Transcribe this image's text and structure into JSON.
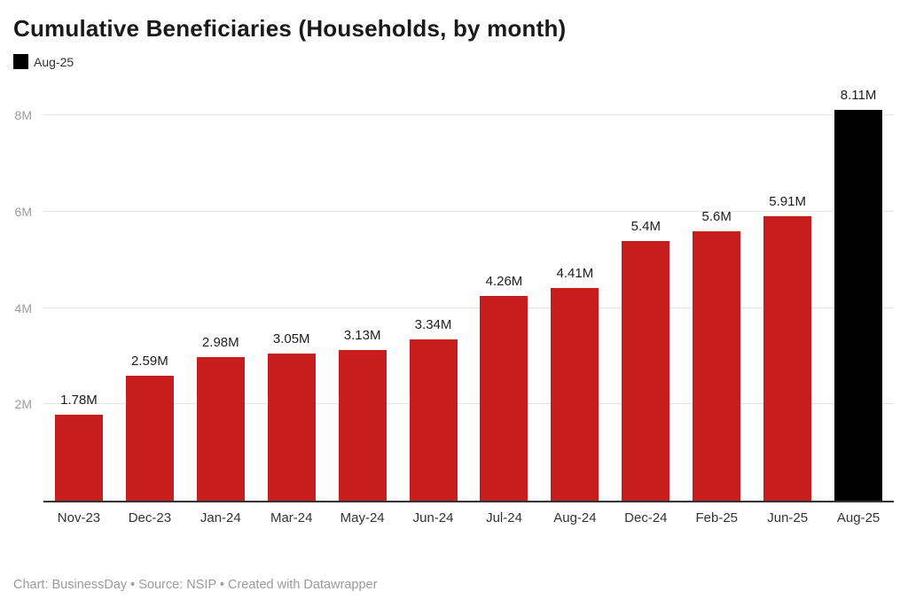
{
  "header": {
    "title": "Cumulative Beneficiaries (Households, by month)",
    "legend_label": "Aug-25"
  },
  "footer": {
    "text": "Chart: BusinessDay • Source: NSIP • Created with Datawrapper"
  },
  "chart_data": {
    "type": "bar",
    "title": "Cumulative Beneficiaries (Households, by month)",
    "categories": [
      "Nov-23",
      "Dec-23",
      "Jan-24",
      "Mar-24",
      "May-24",
      "Jun-24",
      "Jul-24",
      "Aug-24",
      "Dec-24",
      "Feb-25",
      "Jun-25",
      "Aug-25"
    ],
    "values": [
      1.78,
      2.59,
      2.98,
      3.05,
      3.13,
      3.34,
      4.26,
      4.41,
      5.4,
      5.6,
      5.91,
      8.11
    ],
    "value_labels": [
      "1.78M",
      "2.59M",
      "2.98M",
      "3.05M",
      "3.13M",
      "3.34M",
      "4.26M",
      "4.41M",
      "5.4M",
      "5.6M",
      "5.91M",
      "8.11M"
    ],
    "unit": "M households",
    "xlabel": "",
    "ylabel": "",
    "ylim": [
      0,
      8.8
    ],
    "yticks": [
      {
        "value": 2,
        "label": "2M"
      },
      {
        "value": 4,
        "label": "4M"
      },
      {
        "value": 6,
        "label": "6M"
      },
      {
        "value": 8,
        "label": "8M"
      }
    ],
    "grid": "horizontal",
    "legend_position": "top-left",
    "highlighted_category": "Aug-25",
    "colors": {
      "bar": "#c71e1d",
      "highlight": "#000000"
    }
  }
}
